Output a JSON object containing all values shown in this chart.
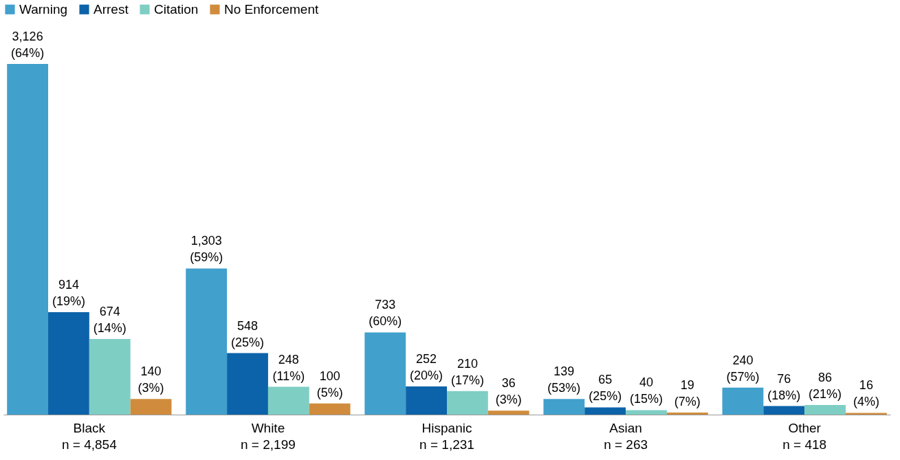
{
  "chart_data": {
    "type": "bar",
    "legend": "top",
    "categories": [
      "Black\nn = 4,854",
      "White\nn = 2,199",
      "Hispanic\nn = 1,231",
      "Asian\nn = 263",
      "Other\nn = 418"
    ],
    "series": [
      {
        "name": "Warning",
        "color": "#41a0cc",
        "values": [
          3126,
          1303,
          733,
          139,
          240
        ],
        "value_labels": [
          "3,126\n(64%)",
          "1,303\n(59%)",
          "733\n(60%)",
          "139\n(53%)",
          "240\n(57%)"
        ]
      },
      {
        "name": "Arrest",
        "color": "#0d63a9",
        "values": [
          914,
          548,
          252,
          65,
          76
        ],
        "value_labels": [
          "914\n(19%)",
          "548\n(25%)",
          "252\n(20%)",
          "65\n(25%)",
          "76\n(18%)"
        ]
      },
      {
        "name": "Citation",
        "color": "#7ecec4",
        "values": [
          674,
          248,
          210,
          40,
          86
        ],
        "value_labels": [
          "674\n(14%)",
          "248\n(11%)",
          "210\n(17%)",
          "40\n(15%)",
          "86\n(21%)"
        ]
      },
      {
        "name": "No Enforcement",
        "color": "#d08c3c",
        "values": [
          140,
          100,
          36,
          19,
          16
        ],
        "value_labels": [
          "140\n(3%)",
          "100\n(5%)",
          "36\n(3%)",
          "19\n(7%)",
          "16\n(4%)"
        ]
      }
    ]
  }
}
